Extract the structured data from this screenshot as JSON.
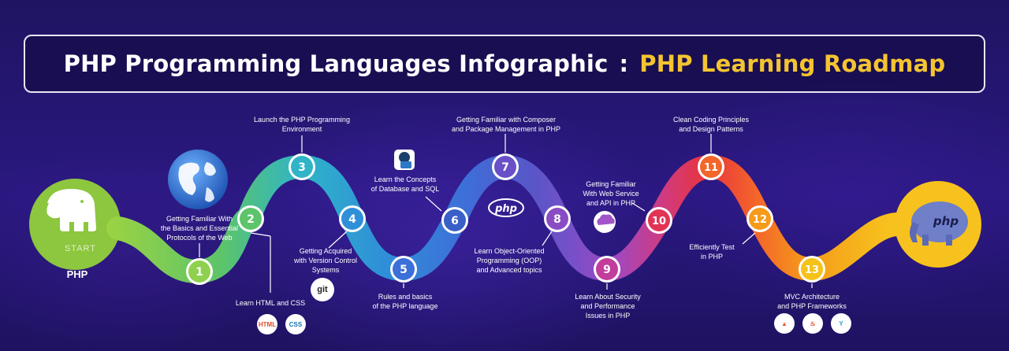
{
  "title": {
    "part1": "PHP Programming Languages Infographic",
    "separator": ":",
    "part2": "PHP Learning Roadmap"
  },
  "start": {
    "caption": "START",
    "label": "PHP"
  },
  "steps": [
    {
      "num": "1",
      "label": "Getting Familiar With\nthe Basics and Essential\nProtocols of the Web",
      "color": "#8fd14f"
    },
    {
      "num": "2",
      "label": "Learn HTML and CSS",
      "color": "#5cc46a"
    },
    {
      "num": "3",
      "label": "Launch the PHP Programming\nEnvironment",
      "color": "#2fb4c8"
    },
    {
      "num": "4",
      "label": "Getting Acquired\nwith Version Control\nSystems",
      "color": "#2f8fd8"
    },
    {
      "num": "5",
      "label": "Rules and basics\nof the PHP language",
      "color": "#3d6fd8"
    },
    {
      "num": "6",
      "label": "Learn the Concepts\nof Database and SQL",
      "color": "#3b5fc8"
    },
    {
      "num": "7",
      "label": "Getting Familiar with Composer\nand Package Management in PHP",
      "color": "#6a4fc8"
    },
    {
      "num": "8",
      "label": "Learn Object-Oriented\nProgramming (OOP)\nand Advanced topics",
      "color": "#8a4cc4"
    },
    {
      "num": "9",
      "label": "Learn About Security\nand Performance\nIssues in PHP",
      "color": "#c23d9c"
    },
    {
      "num": "10",
      "label": "Getting Familiar\nWith Web Service\nand API in PHP",
      "color": "#e23455"
    },
    {
      "num": "11",
      "label": "Clean Coding Principles\nand Design Patterns",
      "color": "#f2662a"
    },
    {
      "num": "12",
      "label": "Efficiently Test\nin PHP",
      "color": "#f59a1a"
    },
    {
      "num": "13",
      "label": "MVC Architecture\nand PHP Frameworks",
      "color": "#f5c21a"
    }
  ],
  "icons": {
    "html5": "HTML",
    "css3": "CSS",
    "git": "git",
    "php_logo": "php",
    "end_php": "php"
  },
  "colors": {
    "bg": "#22136b",
    "accent_yellow": "#f4c430",
    "start_green": "#8dc63f",
    "end_yellow": "#f7c21d"
  }
}
